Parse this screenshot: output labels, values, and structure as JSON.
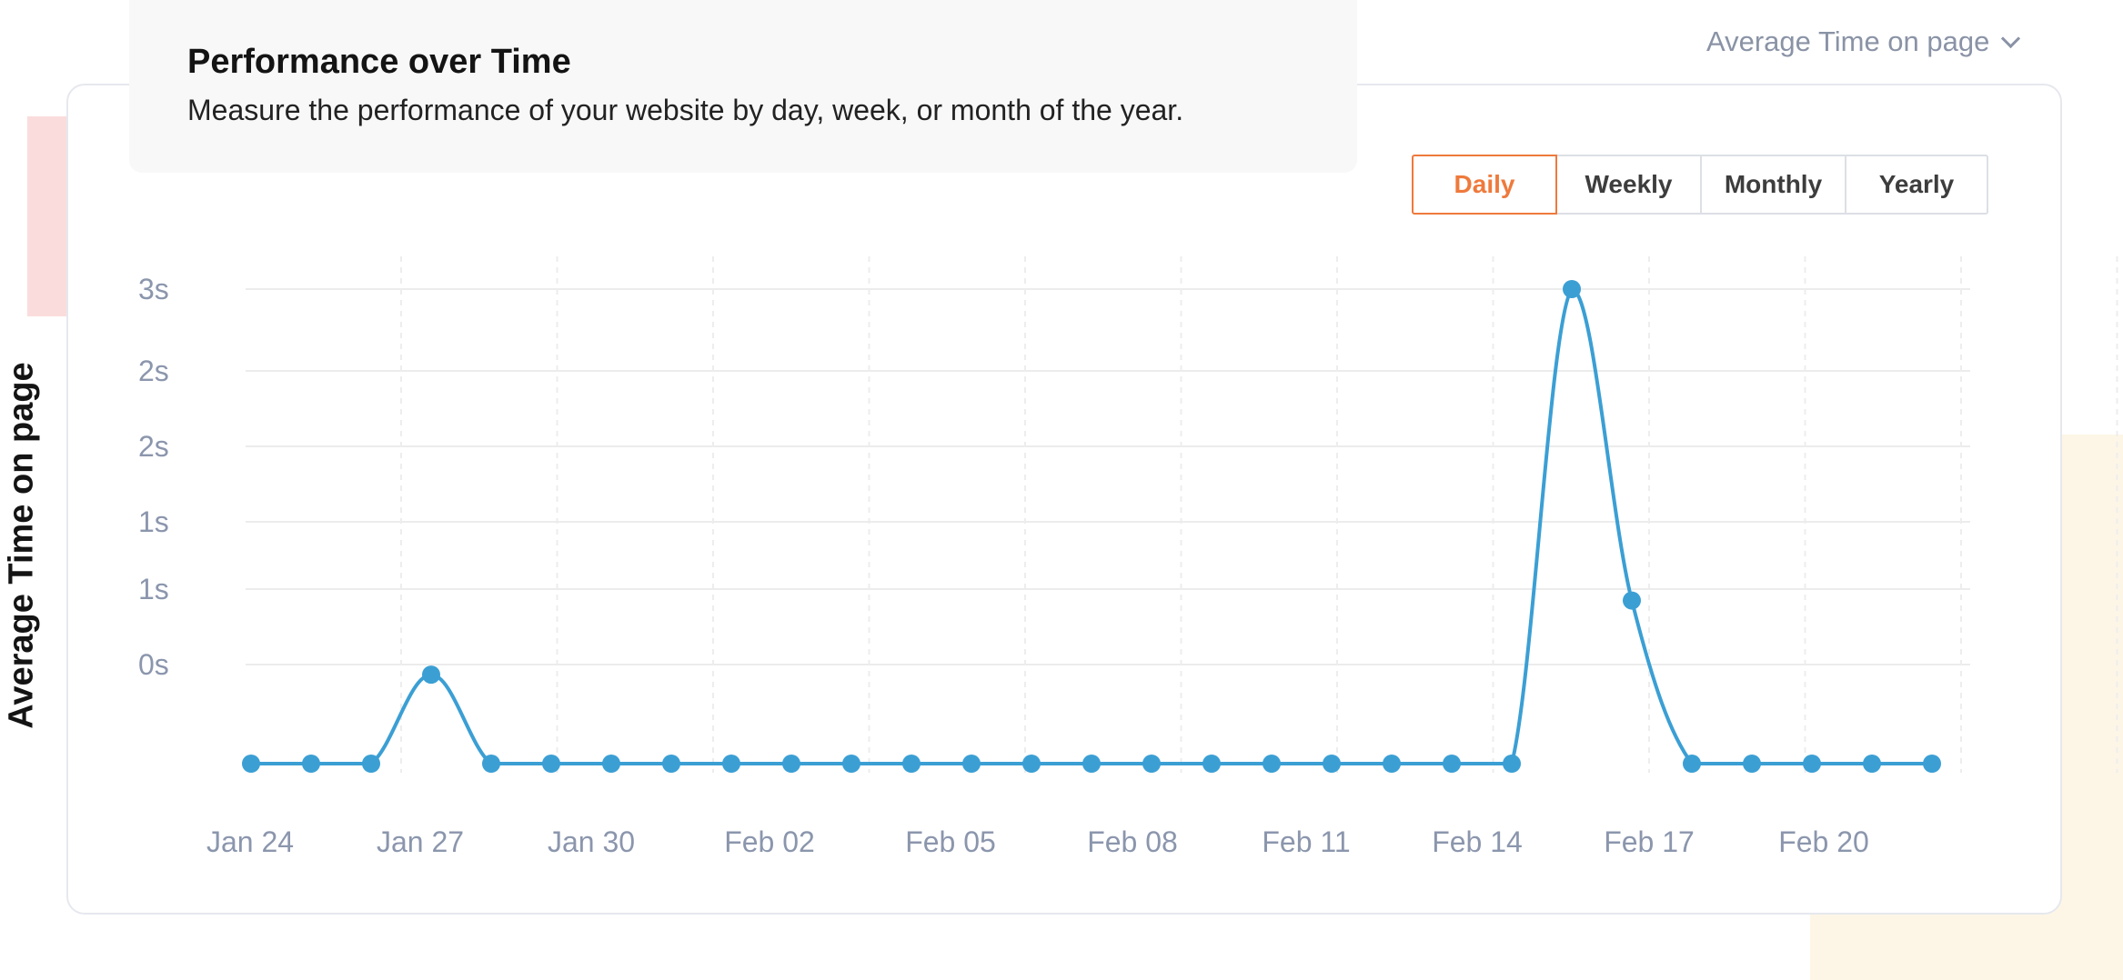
{
  "header": {
    "title": "Performance over Time",
    "description": "Measure the performance of your website by day, week, or month of the year."
  },
  "metric_select": {
    "label": "Average Time on page"
  },
  "period_toggle": {
    "options": [
      "Daily",
      "Weekly",
      "Monthly",
      "Yearly"
    ],
    "active": "Daily"
  },
  "colors": {
    "accent": "#ee7a3c",
    "series": "#3b9fd4"
  },
  "chart_data": {
    "type": "line",
    "title": "",
    "xlabel": "",
    "ylabel": "Average Time on page",
    "y_tick_labels": [
      "0s",
      "1s",
      "1s",
      "2s",
      "2s",
      "3s"
    ],
    "x_tick_labels": [
      "Jan 24",
      "Jan 27",
      "Jan 30",
      "Feb 02",
      "Feb 05",
      "Feb 08",
      "Feb 11",
      "Feb 14",
      "Feb 17",
      "Feb 20"
    ],
    "x": [
      "Jan 24",
      "Jan 25",
      "Jan 26",
      "Jan 27",
      "Jan 28",
      "Jan 29",
      "Jan 30",
      "Jan 31",
      "Feb 01",
      "Feb 02",
      "Feb 03",
      "Feb 04",
      "Feb 05",
      "Feb 06",
      "Feb 07",
      "Feb 08",
      "Feb 09",
      "Feb 10",
      "Feb 11",
      "Feb 12",
      "Feb 13",
      "Feb 14",
      "Feb 15",
      "Feb 16",
      "Feb 17",
      "Feb 18",
      "Feb 19",
      "Feb 20",
      "Feb 21"
    ],
    "series": [
      {
        "values": [
          0,
          0,
          0,
          0.6,
          0,
          0,
          0,
          0,
          0,
          0,
          0,
          0,
          0,
          0,
          0,
          0,
          0,
          0,
          0,
          0,
          0,
          0,
          3.2,
          1.1,
          0,
          0,
          0,
          0,
          0
        ]
      }
    ],
    "grid": true,
    "legend": "none"
  }
}
